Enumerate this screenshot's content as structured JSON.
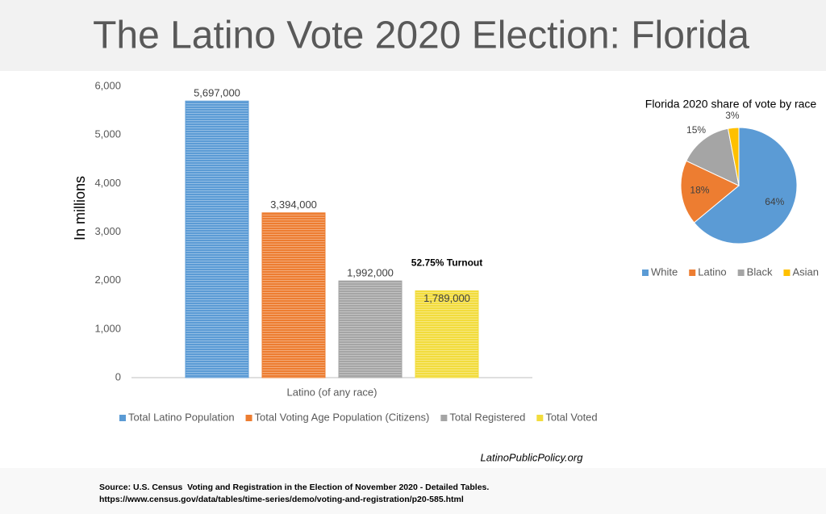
{
  "title": "The Latino Vote 2020 Election: Florida",
  "chart_data": [
    {
      "type": "bar",
      "y_label": "In millions",
      "categories": [
        "Latino (of any race)"
      ],
      "series": [
        {
          "name": "Total Latino Population",
          "color": "#5b9bd5",
          "values": [
            5697
          ],
          "value_labels": [
            "5,697,000"
          ]
        },
        {
          "name": "Total Voting Age Population (Citizens)",
          "color": "#ed7d31",
          "values": [
            3394
          ],
          "value_labels": [
            "3,394,000"
          ]
        },
        {
          "name": "Total Registered",
          "color": "#a5a5a5",
          "values": [
            1992
          ],
          "value_labels": [
            "1,992,000"
          ]
        },
        {
          "name": "Total Voted",
          "color": "#f2dc3c",
          "values": [
            1789
          ],
          "value_labels": [
            "1,789,000"
          ]
        }
      ],
      "annotation": "52.75% Turnout",
      "ylim": [
        0,
        6000
      ],
      "yticks": [
        0,
        {
          "value": 1000,
          "label": "1,000"
        },
        {
          "value": 2000,
          "label": "2,000"
        },
        {
          "value": 3000,
          "label": "3,000"
        },
        {
          "value": 4000,
          "label": "4,000"
        },
        {
          "value": 5000,
          "label": "5,000"
        },
        {
          "value": 6000,
          "label": "6,000"
        }
      ],
      "legend": "bottom"
    },
    {
      "type": "pie",
      "title": "Florida 2020 share of vote by race",
      "categories": [
        "White",
        "Latino",
        "Black",
        "Asian"
      ],
      "values": [
        64,
        18,
        15,
        3
      ],
      "value_labels": [
        "64%",
        "18%",
        "15%",
        "3%"
      ],
      "colors": [
        "#5b9bd5",
        "#ed7d31",
        "#a5a5a5",
        "#ffc000"
      ],
      "legend": "bottom"
    }
  ],
  "website": "LatinoPublicPolicy.org",
  "source": [
    "Source: U.S. Census  Voting and Registration in the Election of November 2020 - Detailed Tables.",
    "https://www.census.gov/data/tables/time-series/demo/voting-and-registration/p20-585.html"
  ]
}
